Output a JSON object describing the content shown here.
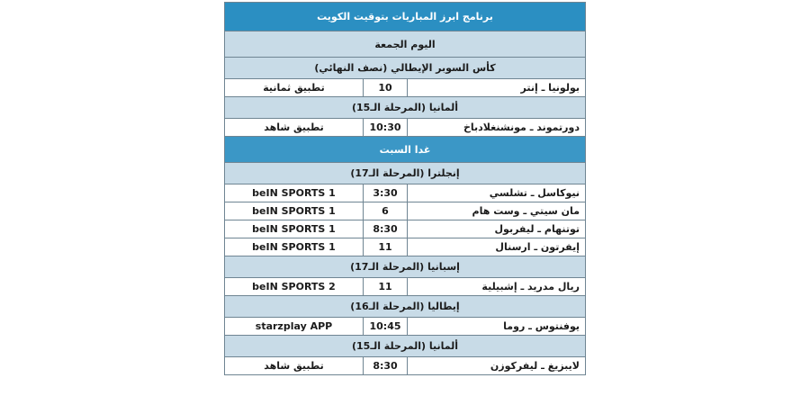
{
  "title": "برنامج ابرز المباريات بتوقيت الكويت",
  "colors": {
    "header": "#2b8fc2",
    "section": "#c8dbe7"
  },
  "days": [
    {
      "label": "اليوم الجمعة",
      "competitions": [
        {
          "name": "كأس السوبر الإيطالي (نصف النهائي)",
          "matches": [
            {
              "teams": "بولونيا ـ إنتر",
              "time": "10",
              "channel": "تطبيق ثمانية"
            }
          ]
        },
        {
          "name": "ألمانيا (المرحلة الـ15)",
          "matches": [
            {
              "teams": "دورتموند ـ مونشنغلادباخ",
              "time": "10:30",
              "channel": "تطبيق شاهد"
            }
          ]
        }
      ]
    },
    {
      "label": "غدا السبت",
      "competitions": [
        {
          "name": "إنجلترا (المرحلة الـ17)",
          "matches": [
            {
              "teams": "نيوكاسل ـ تشلسي",
              "time": "3:30",
              "channel": "beIN SPORTS 1"
            },
            {
              "teams": "مان سيتي ـ وست هام",
              "time": "6",
              "channel": "beIN SPORTS 1"
            },
            {
              "teams": "توتنهام ـ ليفربول",
              "time": "8:30",
              "channel": "beIN SPORTS 1"
            },
            {
              "teams": "إيفرتون ـ ارسنال",
              "time": "11",
              "channel": "beIN SPORTS 1"
            }
          ]
        },
        {
          "name": "إسبانيا (المرحلة الـ17)",
          "matches": [
            {
              "teams": "ريال مدريد ـ إشبيلية",
              "time": "11",
              "channel": "beIN SPORTS 2"
            }
          ]
        },
        {
          "name": "إيطاليا (المرحلة الـ16)",
          "matches": [
            {
              "teams": "يوفنتوس ـ روما",
              "time": "10:45",
              "channel": "starzplay APP"
            }
          ]
        },
        {
          "name": "ألمانيا (المرحلة الـ15)",
          "matches": [
            {
              "teams": "لايبزيغ ـ ليفركوزن",
              "time": "8:30",
              "channel": "تطبيق شاهد"
            }
          ]
        }
      ]
    }
  ]
}
